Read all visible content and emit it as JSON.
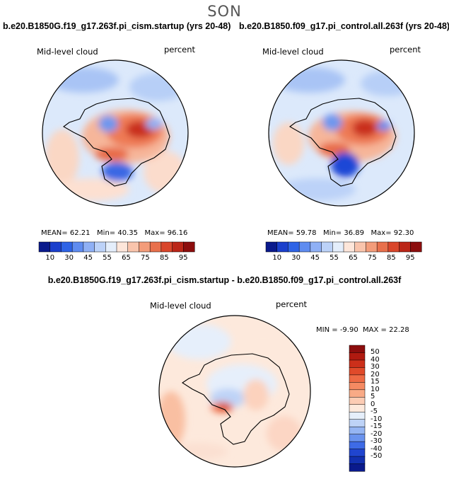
{
  "page": {
    "season": "SON",
    "diff_title": "b.e20.B1850G.f19_g17.263f.pi_cism.startup - b.e20.B1850.f09_g17.pi_control.all.263f"
  },
  "chart_data": [
    {
      "type": "heatmap",
      "projection": "south-polar-stereographic",
      "title": "b.e20.B1850G.f19_g17.263f.pi_cism.startup (yrs 20-48)",
      "variable": "Mid-level cloud",
      "units": "percent",
      "stats": {
        "mean_label": "MEAN=",
        "mean": "62.21",
        "min_label": "Min=",
        "min": "40.35",
        "max_label": "Max=",
        "max": "96.16"
      },
      "colorbar": {
        "orientation": "horizontal",
        "ticks": [
          "10",
          "30",
          "45",
          "55",
          "65",
          "75",
          "85",
          "95"
        ],
        "colors": [
          "#0a1a8c",
          "#1a3fcc",
          "#2e63e6",
          "#5f8cf0",
          "#8fb0f5",
          "#bcd2f8",
          "#e4eefb",
          "#fde6da",
          "#f9c4ac",
          "#f39c7a",
          "#e8704c",
          "#d9462b",
          "#bb2618",
          "#8c0d0d"
        ]
      }
    },
    {
      "type": "heatmap",
      "projection": "south-polar-stereographic",
      "title": "b.e20.B1850.f09_g17.pi_control.all.263f (yrs 20-48)",
      "variable": "Mid-level cloud",
      "units": "percent",
      "stats": {
        "mean_label": "MEAN=",
        "mean": "59.78",
        "min_label": "Min=",
        "min": "36.89",
        "max_label": "Max=",
        "max": "92.30"
      },
      "colorbar": {
        "orientation": "horizontal",
        "ticks": [
          "10",
          "30",
          "45",
          "55",
          "65",
          "75",
          "85",
          "95"
        ],
        "colors": [
          "#0a1a8c",
          "#1a3fcc",
          "#2e63e6",
          "#5f8cf0",
          "#8fb0f5",
          "#bcd2f8",
          "#e4eefb",
          "#fde6da",
          "#f9c4ac",
          "#f39c7a",
          "#e8704c",
          "#d9462b",
          "#bb2618",
          "#8c0d0d"
        ]
      }
    },
    {
      "type": "heatmap",
      "projection": "south-polar-stereographic",
      "title": "b.e20.B1850G.f19_g17.263f.pi_cism.startup - b.e20.B1850.f09_g17.pi_control.all.263f",
      "variable": "Mid-level cloud",
      "units": "percent",
      "stats": {
        "min_label": "MIN =",
        "min": "-9.90",
        "max_label": "MAX =",
        "max": "22.28"
      },
      "colorbar": {
        "orientation": "vertical",
        "ticks": [
          "50",
          "40",
          "30",
          "20",
          "15",
          "10",
          "5",
          "0",
          "-5",
          "-10",
          "-15",
          "-20",
          "-30",
          "-40",
          "-50"
        ],
        "colors": [
          "#8c0d0d",
          "#b01a10",
          "#cc2f1a",
          "#e04a2a",
          "#ee6a44",
          "#f58a62",
          "#f9aa86",
          "#fcccb4",
          "#fde9dc",
          "#e6effb",
          "#bed3f7",
          "#95b5f3",
          "#6a93ee",
          "#3e6be6",
          "#2045cf",
          "#1230b0",
          "#0a1a8c"
        ]
      }
    }
  ]
}
